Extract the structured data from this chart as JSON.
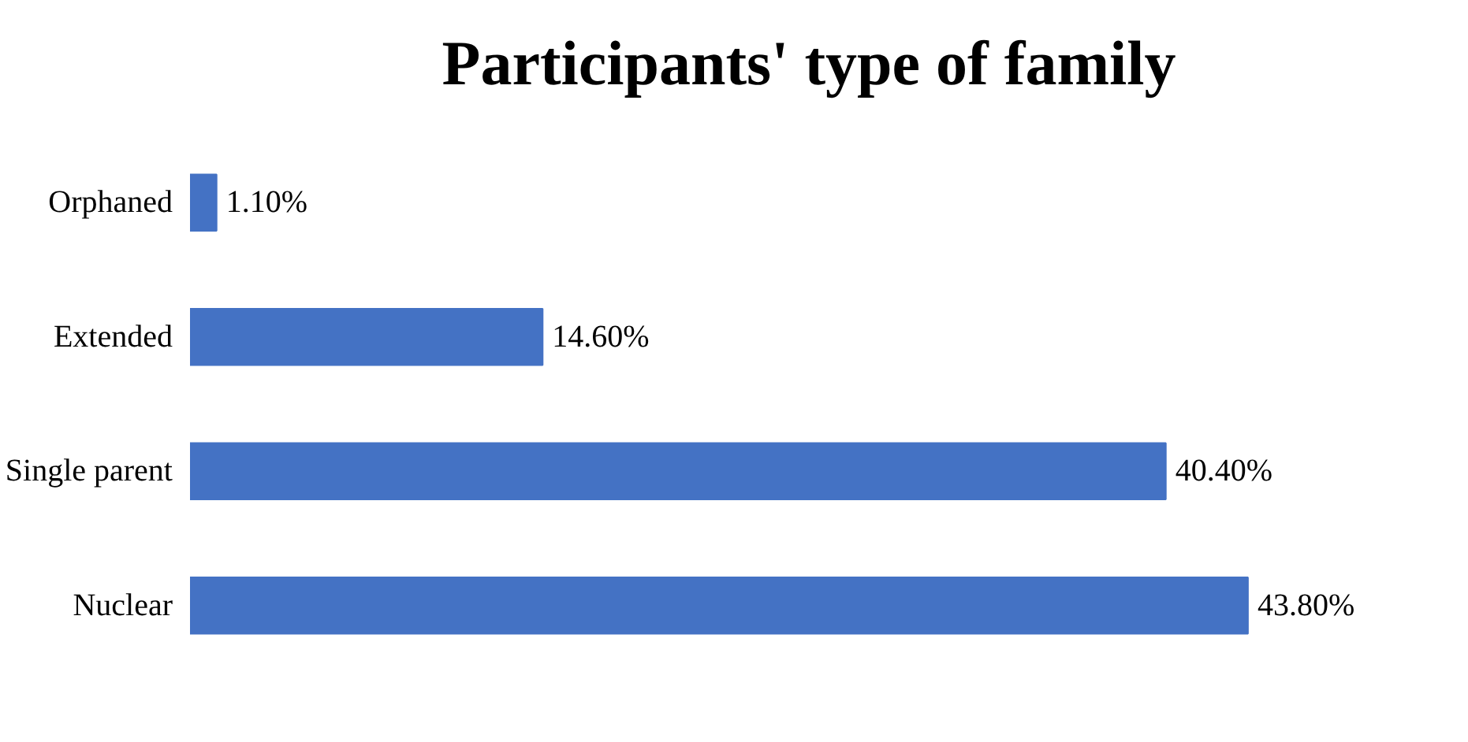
{
  "chart_data": {
    "type": "bar",
    "orientation": "horizontal",
    "title": "Participants' type of family",
    "categories": [
      "Orphaned",
      "Extended",
      "Single parent",
      "Nuclear"
    ],
    "values": [
      1.1,
      14.6,
      40.4,
      43.8
    ],
    "value_labels": [
      "1.10%",
      "14.60%",
      "40.40%",
      "43.80%"
    ],
    "color": "#4472c4"
  }
}
